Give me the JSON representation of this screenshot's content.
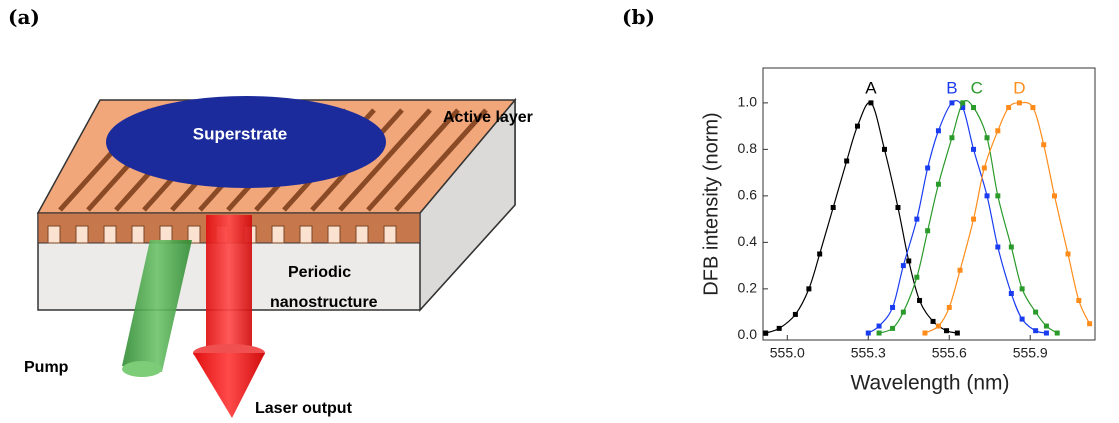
{
  "panel_labels": [
    "(a)",
    "(b)"
  ],
  "diagram": {
    "superstrate": "Superstrate",
    "active_layer": "Active layer",
    "nanostructure": [
      "Periodic",
      "nanostructure"
    ],
    "pump": "Pump",
    "laser_output": "Laser output"
  },
  "chart_data": {
    "type": "line",
    "x_label": "Wavelength (nm)",
    "y_label": "DFB intensity (norm)",
    "xlim": [
      554.91,
      556.14
    ],
    "ylim": [
      -0.02,
      1.15
    ],
    "xticks": [
      {
        "value": 555,
        "label": "555.0"
      },
      555.3,
      555.6,
      555.9
    ],
    "yticks": [
      {
        "value": 0,
        "label": "0.0"
      },
      0.2,
      0.4,
      0.6,
      0.8,
      {
        "value": 1,
        "label": "1.0"
      }
    ],
    "series": [
      {
        "name": "A",
        "color": "#000000",
        "x": [
          554.92,
          554.97,
          555.03,
          555.08,
          555.12,
          555.17,
          555.22,
          555.26,
          555.31,
          555.36,
          555.41,
          555.45,
          555.49,
          555.54,
          555.59,
          555.63
        ],
        "values": [
          0.01,
          0.03,
          0.09,
          0.2,
          0.35,
          0.55,
          0.75,
          0.9,
          1.0,
          0.8,
          0.55,
          0.32,
          0.15,
          0.06,
          0.02,
          0.01
        ]
      },
      {
        "name": "B",
        "color": "#1a3cf0",
        "x": [
          555.3,
          555.34,
          555.39,
          555.43,
          555.48,
          555.52,
          555.56,
          555.61,
          555.65,
          555.69,
          555.74,
          555.78,
          555.83,
          555.87,
          555.92,
          555.96
        ],
        "values": [
          0.01,
          0.04,
          0.12,
          0.3,
          0.5,
          0.72,
          0.88,
          1.0,
          0.98,
          0.8,
          0.6,
          0.38,
          0.18,
          0.07,
          0.02,
          0.01
        ]
      },
      {
        "name": "C",
        "color": "#2a9a2a",
        "x": [
          555.34,
          555.39,
          555.43,
          555.48,
          555.52,
          555.56,
          555.61,
          555.65,
          555.69,
          555.74,
          555.78,
          555.83,
          555.87,
          555.92,
          555.96,
          556.0
        ],
        "values": [
          0.01,
          0.03,
          0.1,
          0.25,
          0.45,
          0.65,
          0.85,
          1.0,
          0.98,
          0.85,
          0.6,
          0.38,
          0.2,
          0.1,
          0.04,
          0.01
        ]
      },
      {
        "name": "D",
        "color": "#ff8c1a",
        "x": [
          555.51,
          555.56,
          555.6,
          555.64,
          555.69,
          555.73,
          555.78,
          555.82,
          555.86,
          555.91,
          555.95,
          555.99,
          556.04,
          556.08,
          556.12
        ],
        "values": [
          0.01,
          0.04,
          0.12,
          0.28,
          0.5,
          0.72,
          0.88,
          0.98,
          1.0,
          0.98,
          0.82,
          0.6,
          0.35,
          0.15,
          0.05
        ]
      }
    ]
  }
}
